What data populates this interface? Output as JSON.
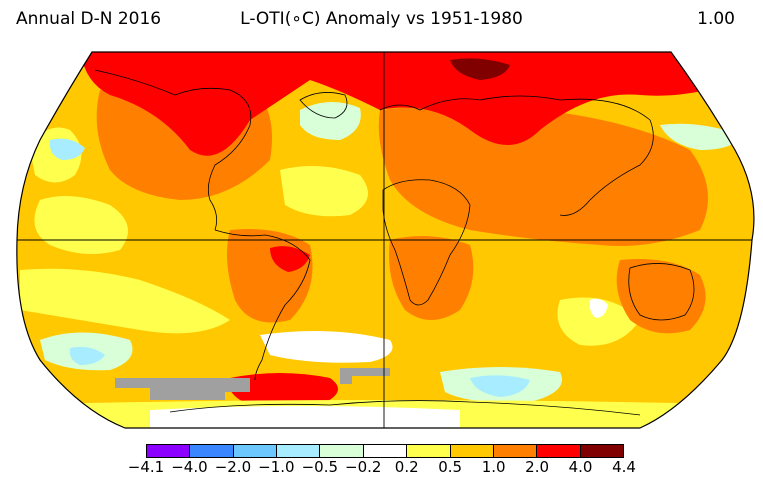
{
  "header": {
    "left": "Annual D-N 2016",
    "center": "L-OTI(∘C) Anomaly vs 1951-1980",
    "right": "1.00"
  },
  "colorbar": {
    "colors": [
      "#8b00ff",
      "#3a86ff",
      "#6cc7ff",
      "#a7ecff",
      "#d8ffd8",
      "#ffffff",
      "#ffff4d",
      "#ffc800",
      "#ff8000",
      "#ff0000",
      "#800000"
    ],
    "ticks": [
      "−4.1",
      "−4.0",
      "−2.0",
      "−1.0",
      "−0.5",
      "−0.2",
      "0.2",
      "0.5",
      "1.0",
      "2.0",
      "4.0",
      "4.4"
    ]
  },
  "map": {
    "projection": "Robinson",
    "no_data_color": "#a0a0a0"
  }
}
